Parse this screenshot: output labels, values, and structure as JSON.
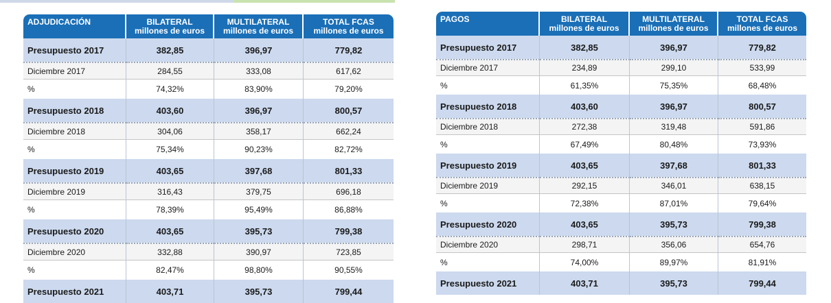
{
  "adjudicacion": {
    "headers": [
      {
        "title": "ADJUDICACIÓN",
        "sub": ""
      },
      {
        "title": "BILATERAL",
        "sub": "millones de euros"
      },
      {
        "title": "MULTILATERAL",
        "sub": "millones de euros"
      },
      {
        "title": "TOTAL FCAS",
        "sub": "millones de euros"
      }
    ],
    "rows": [
      {
        "type": "budget",
        "cells": [
          "Presupuesto 2017",
          "382,85",
          "396,97",
          "779,82"
        ]
      },
      {
        "type": "december",
        "cells": [
          "Diciembre 2017",
          "284,55",
          "333,08",
          "617,62"
        ]
      },
      {
        "type": "percent",
        "cells": [
          "%",
          "74,32%",
          "83,90%",
          "79,20%"
        ]
      },
      {
        "type": "budget",
        "cells": [
          "Presupuesto 2018",
          "403,60",
          "396,97",
          "800,57"
        ]
      },
      {
        "type": "december",
        "cells": [
          "Diciembre 2018",
          "304,06",
          "358,17",
          "662,24"
        ]
      },
      {
        "type": "percent",
        "cells": [
          "%",
          "75,34%",
          "90,23%",
          "82,72%"
        ]
      },
      {
        "type": "budget",
        "cells": [
          "Presupuesto 2019",
          "403,65",
          "397,68",
          "801,33"
        ]
      },
      {
        "type": "december",
        "cells": [
          "Diciembre 2019",
          "316,43",
          "379,75",
          "696,18"
        ]
      },
      {
        "type": "percent",
        "cells": [
          "%",
          "78,39%",
          "95,49%",
          "86,88%"
        ]
      },
      {
        "type": "budget",
        "cells": [
          "Presupuesto 2020",
          "403,65",
          "395,73",
          "799,38"
        ]
      },
      {
        "type": "december",
        "cells": [
          "Diciembre 2020",
          "332,88",
          "390,97",
          "723,85"
        ]
      },
      {
        "type": "percent",
        "cells": [
          "%",
          "82,47%",
          "98,80%",
          "90,55%"
        ]
      },
      {
        "type": "budget",
        "cells": [
          "Presupuesto 2021",
          "403,71",
          "395,73",
          "799,44"
        ]
      }
    ]
  },
  "pagos": {
    "headers": [
      {
        "title": "PAGOS",
        "sub": ""
      },
      {
        "title": "BILATERAL",
        "sub": "millones de euros"
      },
      {
        "title": "MULTILATERAL",
        "sub": "millones de euros"
      },
      {
        "title": "TOTAL FCAS",
        "sub": "millones de euros"
      }
    ],
    "rows": [
      {
        "type": "budget",
        "cells": [
          "Presupuesto 2017",
          "382,85",
          "396,97",
          "779,82"
        ]
      },
      {
        "type": "december",
        "cells": [
          "Diciembre 2017",
          "234,89",
          "299,10",
          "533,99"
        ]
      },
      {
        "type": "percent",
        "cells": [
          "%",
          "61,35%",
          "75,35%",
          "68,48%"
        ]
      },
      {
        "type": "budget",
        "cells": [
          "Presupuesto 2018",
          "403,60",
          "396,97",
          "800,57"
        ]
      },
      {
        "type": "december",
        "cells": [
          "Diciembre 2018",
          "272,38",
          "319,48",
          "591,86"
        ]
      },
      {
        "type": "percent",
        "cells": [
          "%",
          "67,49%",
          "80,48%",
          "73,93%"
        ]
      },
      {
        "type": "budget",
        "cells": [
          "Presupuesto 2019",
          "403,65",
          "397,68",
          "801,33"
        ]
      },
      {
        "type": "december",
        "cells": [
          "Diciembre 2019",
          "292,15",
          "346,01",
          "638,15"
        ]
      },
      {
        "type": "percent",
        "cells": [
          "%",
          "72,38%",
          "87,01%",
          "79,64%"
        ]
      },
      {
        "type": "budget",
        "cells": [
          "Presupuesto 2020",
          "403,65",
          "395,73",
          "799,38"
        ]
      },
      {
        "type": "december",
        "cells": [
          "Diciembre 2020",
          "298,71",
          "356,06",
          "654,76"
        ]
      },
      {
        "type": "percent",
        "cells": [
          "%",
          "74,00%",
          "89,97%",
          "81,91%"
        ]
      },
      {
        "type": "budget",
        "cells": [
          "Presupuesto 2021",
          "403,71",
          "395,73",
          "799,44"
        ]
      }
    ]
  }
}
